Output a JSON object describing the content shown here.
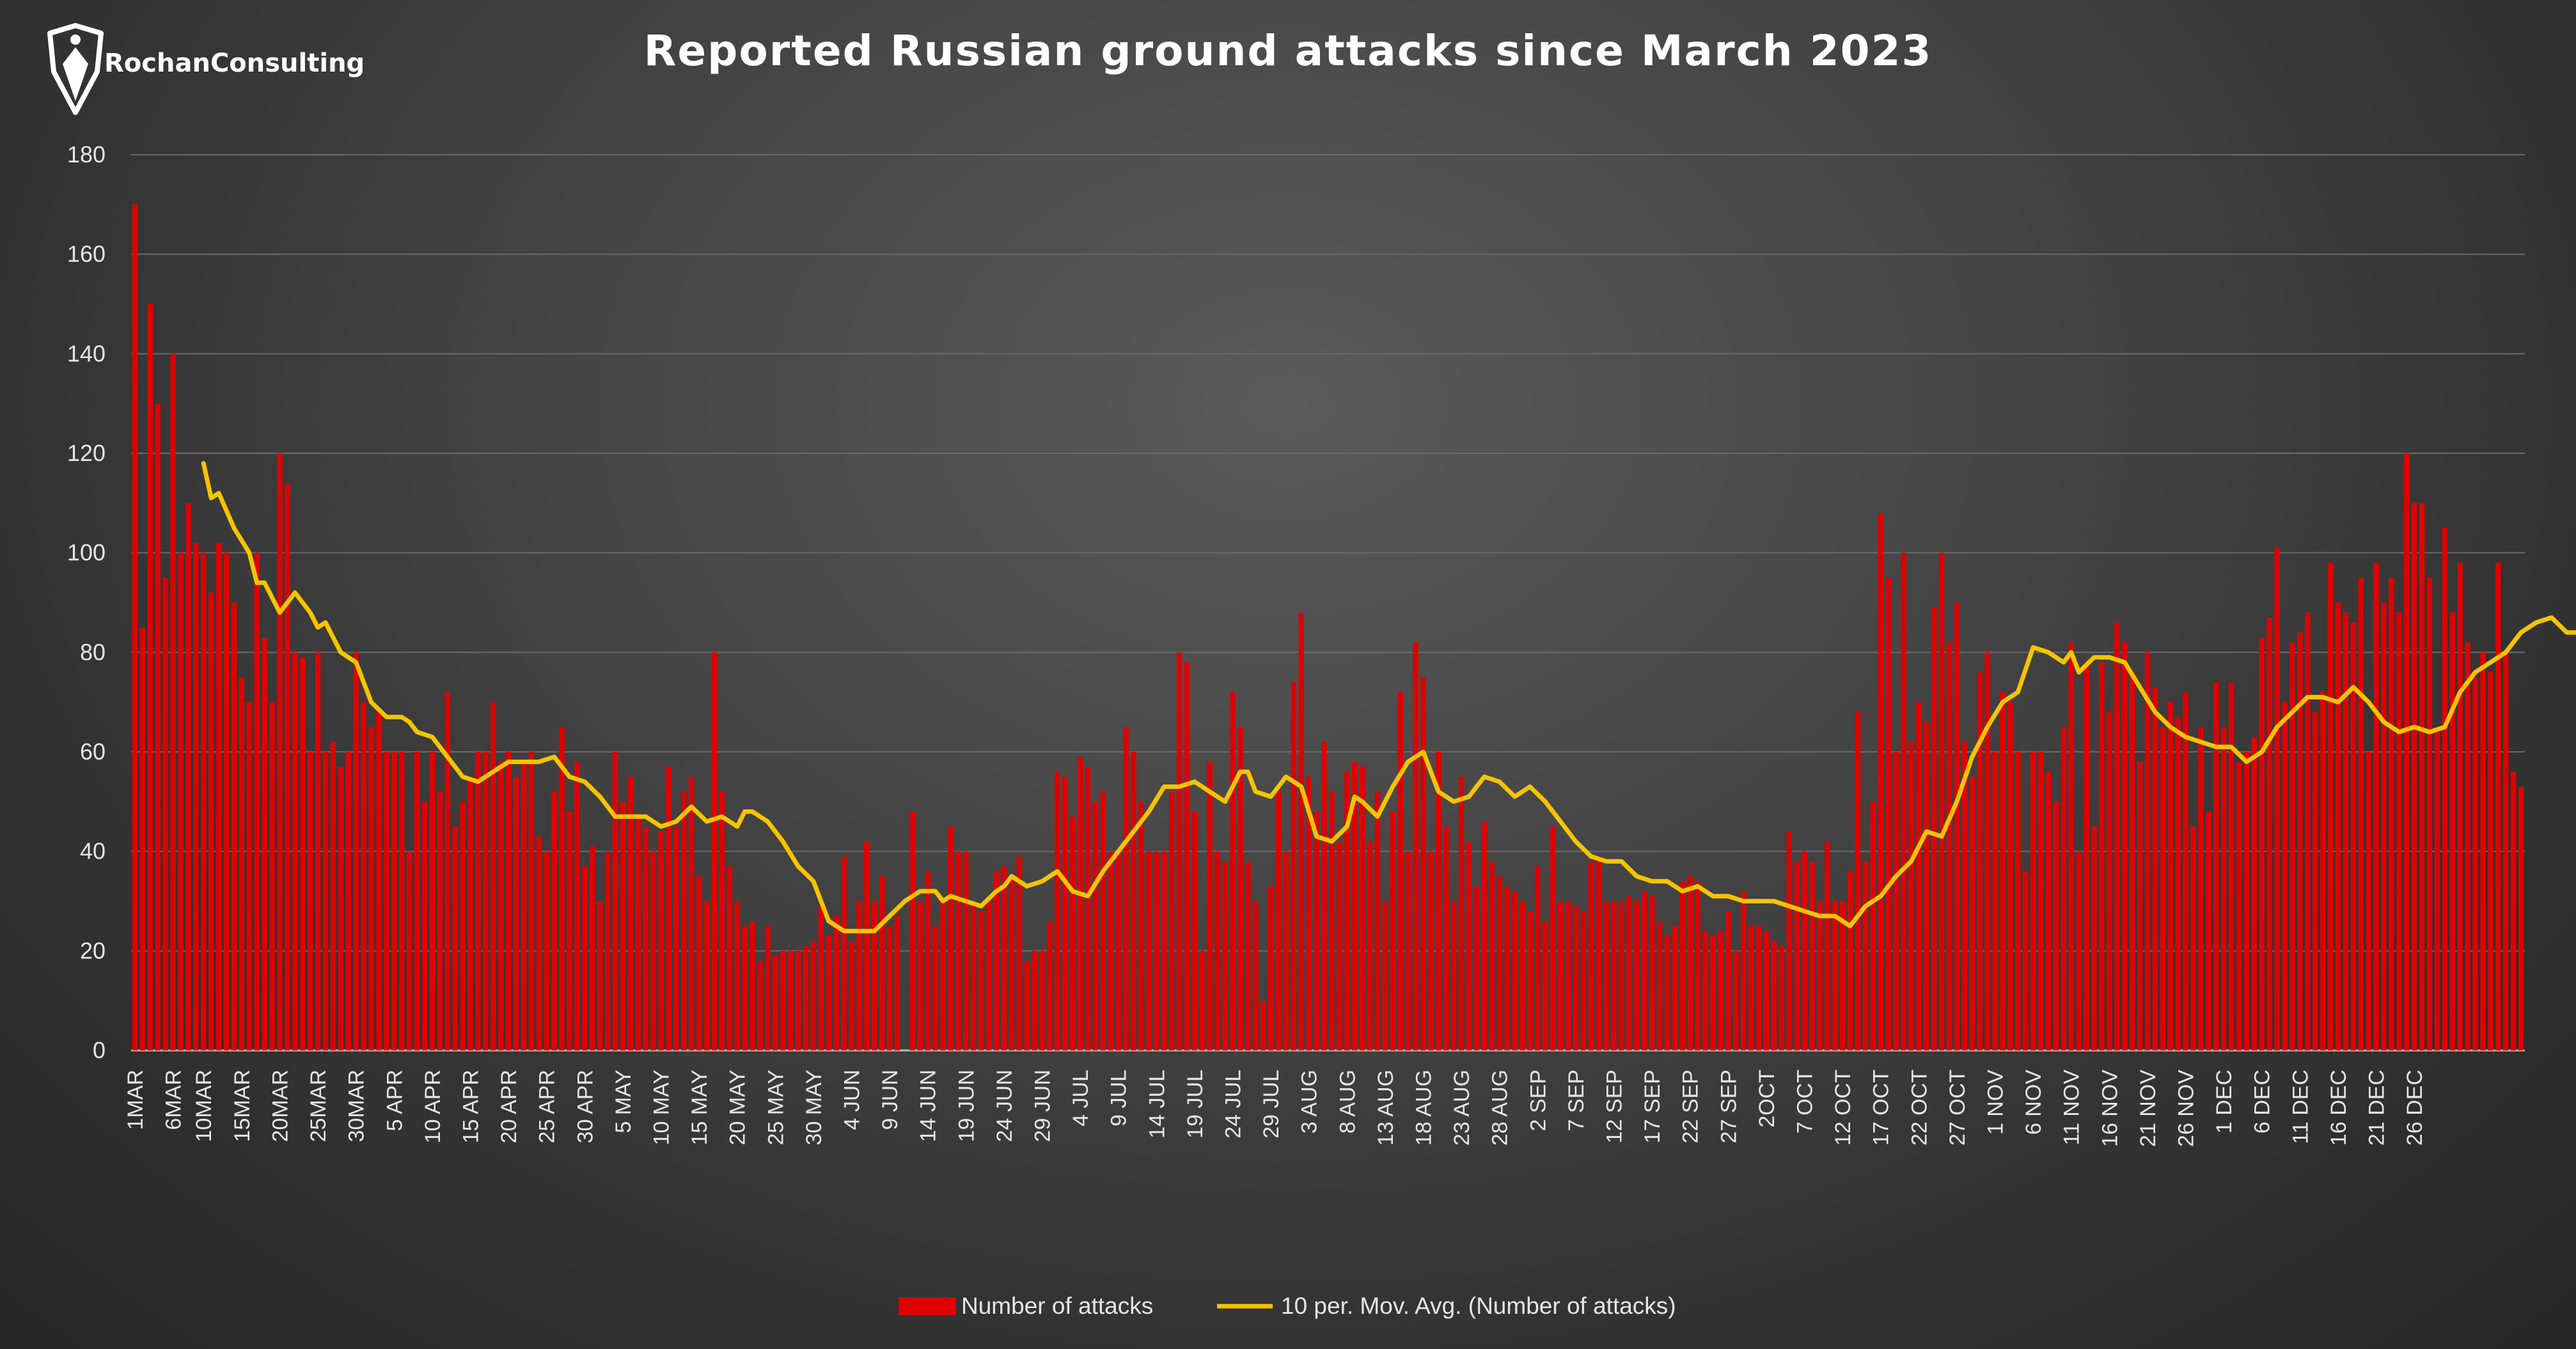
{
  "brand": {
    "name": "RochanConsulting",
    "logo_icon": "shield-pen-logo-icon"
  },
  "chart_data": {
    "type": "bar",
    "title": "Reported Russian ground attacks since March 2023",
    "ylim": [
      0,
      180
    ],
    "yticks": [
      0,
      20,
      40,
      60,
      80,
      100,
      120,
      140,
      160,
      180
    ],
    "grid": "horizontal",
    "legend_position": "bottom-center",
    "x_tick_labels": [
      "1MAR",
      "6MAR",
      "10MAR",
      "15MAR",
      "20MAR",
      "25MAR",
      "30MAR",
      "5 APR",
      "10 APR",
      "15 APR",
      "20 APR",
      "25 APR",
      "30 APR",
      "5 MAY",
      "10 MAY",
      "15 MAY",
      "20 MAY",
      "25 MAY",
      "30 MAY",
      "4 JUN",
      "9 JUN",
      "14 JUN",
      "19 JUN",
      "24 JUN",
      "29 JUN",
      "4 JUL",
      "9 JUL",
      "14 JUL",
      "19 JUL",
      "24 JUL",
      "29 JUL",
      "3 AUG",
      "8 AUG",
      "13 AUG",
      "18 AUG",
      "23 AUG",
      "28 AUG",
      "2 SEP",
      "7 SEP",
      "12 SEP",
      "17 SEP",
      "22 SEP",
      "27 SEP",
      "2OCT",
      "7 OCT",
      "12 OCT",
      "17 OCT",
      "22 OCT",
      "27 OCT",
      "1 NOV",
      "6 NOV",
      "11 NOV",
      "16 NOV",
      "21 NOV",
      "26 NOV",
      "1 DEC",
      "6 DEC",
      "11 DEC",
      "16 DEC",
      "21 DEC",
      "26 DEC"
    ],
    "series": [
      {
        "name": "Number of attacks",
        "kind": "bar",
        "color": "#e00000",
        "values": [
          170,
          85,
          150,
          130,
          95,
          140,
          100,
          110,
          102,
          100,
          92,
          102,
          100,
          90,
          75,
          70,
          100,
          83,
          70,
          120,
          114,
          80,
          79,
          60,
          80,
          60,
          62,
          57,
          60,
          80,
          70,
          65,
          68,
          60,
          60,
          60,
          40,
          60,
          50,
          60,
          52,
          72,
          45,
          50,
          55,
          60,
          60,
          70,
          58,
          60,
          55,
          58,
          60,
          43,
          40,
          52,
          65,
          48,
          58,
          37,
          41,
          30,
          40,
          60,
          50,
          55,
          47,
          45,
          40,
          44,
          57,
          45,
          52,
          55,
          35,
          30,
          80,
          52,
          37,
          30,
          25,
          26,
          18,
          25,
          19,
          20,
          20,
          20,
          21,
          22,
          29,
          23,
          27,
          39,
          22,
          30,
          42,
          30,
          35,
          25,
          27,
          0,
          48,
          30,
          36,
          25,
          30,
          45,
          40,
          40,
          30,
          28,
          30,
          36,
          37,
          35,
          39,
          18,
          20,
          20,
          26,
          56,
          55,
          47,
          59,
          57,
          50,
          52,
          40,
          40,
          65,
          60,
          50,
          40,
          40,
          40,
          52,
          80,
          78,
          48,
          20,
          58,
          40,
          38,
          72,
          65,
          38,
          30,
          10,
          33,
          52,
          40,
          74,
          88,
          55,
          48,
          62,
          52,
          42,
          56,
          58,
          57,
          42,
          52,
          30,
          48,
          72,
          40,
          82,
          75,
          40,
          60,
          45,
          30,
          55,
          42,
          33,
          46,
          38,
          35,
          33,
          32,
          30,
          28,
          37,
          26,
          45,
          30,
          30,
          29,
          28,
          38,
          39,
          30,
          30,
          30,
          31,
          30,
          32,
          31,
          26,
          23,
          25,
          34,
          35,
          34,
          24,
          23,
          24,
          28,
          20,
          32,
          25,
          25,
          24,
          22,
          21,
          44,
          38,
          40,
          38,
          30,
          42,
          30,
          30,
          36,
          68,
          38,
          50,
          108,
          95,
          60,
          100,
          62,
          70,
          66,
          89,
          100,
          82,
          90,
          62,
          55,
          76,
          80,
          60,
          72,
          70,
          60,
          36,
          60,
          60,
          56,
          50,
          65,
          82,
          40,
          78,
          45,
          78,
          68,
          86,
          82,
          76,
          58,
          80,
          73,
          65,
          70,
          67,
          72,
          45,
          65,
          48,
          74,
          65,
          74,
          58,
          60,
          63,
          83,
          87,
          101,
          70,
          82,
          84,
          88,
          68,
          72,
          98,
          90,
          88,
          86,
          95,
          60,
          98,
          90,
          95,
          88,
          120,
          110,
          110,
          95,
          64,
          105,
          88,
          98,
          82,
          75,
          80,
          76,
          98,
          80,
          56,
          53
        ],
        "show_every_label": false
      },
      {
        "name": "10 per. Mov. Avg. (Number of attacks)",
        "kind": "line",
        "color": "#f5c400",
        "anchors": [
          [
            9,
            118
          ],
          [
            10,
            111
          ],
          [
            11,
            112
          ],
          [
            13,
            105
          ],
          [
            15,
            100
          ],
          [
            16,
            94
          ],
          [
            17,
            94
          ],
          [
            18,
            91
          ],
          [
            19,
            88
          ],
          [
            20,
            90
          ],
          [
            21,
            92
          ],
          [
            23,
            88
          ],
          [
            24,
            85
          ],
          [
            25,
            86
          ],
          [
            27,
            80
          ],
          [
            29,
            78
          ],
          [
            31,
            70
          ],
          [
            33,
            67
          ],
          [
            35,
            67
          ],
          [
            36,
            66
          ],
          [
            37,
            64
          ],
          [
            39,
            63
          ],
          [
            41,
            59
          ],
          [
            43,
            55
          ],
          [
            45,
            54
          ],
          [
            47,
            56
          ],
          [
            49,
            58
          ],
          [
            51,
            58
          ],
          [
            53,
            58
          ],
          [
            55,
            59
          ],
          [
            57,
            55
          ],
          [
            59,
            54
          ],
          [
            61,
            51
          ],
          [
            63,
            47
          ],
          [
            65,
            47
          ],
          [
            67,
            47
          ],
          [
            69,
            45
          ],
          [
            71,
            46
          ],
          [
            73,
            49
          ],
          [
            75,
            46
          ],
          [
            77,
            47
          ],
          [
            79,
            45
          ],
          [
            80,
            48
          ],
          [
            81,
            48
          ],
          [
            83,
            46
          ],
          [
            85,
            42
          ],
          [
            87,
            37
          ],
          [
            89,
            34
          ],
          [
            90,
            30
          ],
          [
            91,
            26
          ],
          [
            93,
            24
          ],
          [
            95,
            24
          ],
          [
            97,
            24
          ],
          [
            99,
            27
          ],
          [
            101,
            30
          ],
          [
            103,
            32
          ],
          [
            105,
            32
          ],
          [
            106,
            30
          ],
          [
            107,
            31
          ],
          [
            109,
            30
          ],
          [
            111,
            29
          ],
          [
            113,
            32
          ],
          [
            114,
            33
          ],
          [
            115,
            35
          ],
          [
            117,
            33
          ],
          [
            119,
            34
          ],
          [
            121,
            36
          ],
          [
            123,
            32
          ],
          [
            125,
            31
          ],
          [
            127,
            36
          ],
          [
            129,
            40
          ],
          [
            131,
            44
          ],
          [
            133,
            48
          ],
          [
            135,
            53
          ],
          [
            137,
            53
          ],
          [
            139,
            54
          ],
          [
            141,
            52
          ],
          [
            143,
            50
          ],
          [
            145,
            56
          ],
          [
            146,
            56
          ],
          [
            147,
            52
          ],
          [
            149,
            51
          ],
          [
            151,
            55
          ],
          [
            152,
            54
          ],
          [
            153,
            53
          ],
          [
            155,
            43
          ],
          [
            157,
            42
          ],
          [
            159,
            45
          ],
          [
            160,
            51
          ],
          [
            161,
            50
          ],
          [
            163,
            47
          ],
          [
            165,
            53
          ],
          [
            167,
            58
          ],
          [
            169,
            60
          ],
          [
            171,
            52
          ],
          [
            173,
            50
          ],
          [
            175,
            51
          ],
          [
            177,
            55
          ],
          [
            179,
            54
          ],
          [
            181,
            51
          ],
          [
            183,
            53
          ],
          [
            185,
            50
          ],
          [
            187,
            46
          ],
          [
            189,
            42
          ],
          [
            191,
            39
          ],
          [
            193,
            38
          ],
          [
            195,
            38
          ],
          [
            197,
            35
          ],
          [
            199,
            34
          ],
          [
            201,
            34
          ],
          [
            203,
            32
          ],
          [
            205,
            33
          ],
          [
            207,
            31
          ],
          [
            209,
            31
          ],
          [
            211,
            30
          ],
          [
            213,
            30
          ],
          [
            215,
            30
          ],
          [
            217,
            29
          ],
          [
            219,
            28
          ],
          [
            221,
            27
          ],
          [
            223,
            27
          ],
          [
            225,
            25
          ],
          [
            227,
            29
          ],
          [
            229,
            31
          ],
          [
            231,
            35
          ],
          [
            233,
            38
          ],
          [
            235,
            44
          ],
          [
            237,
            43
          ],
          [
            239,
            50
          ],
          [
            241,
            59
          ],
          [
            243,
            65
          ],
          [
            245,
            70
          ],
          [
            247,
            72
          ],
          [
            249,
            81
          ],
          [
            251,
            80
          ],
          [
            253,
            78
          ],
          [
            254,
            80
          ],
          [
            255,
            76
          ],
          [
            257,
            79
          ],
          [
            259,
            79
          ],
          [
            261,
            78
          ],
          [
            263,
            73
          ],
          [
            265,
            68
          ],
          [
            267,
            65
          ],
          [
            269,
            63
          ],
          [
            271,
            62
          ],
          [
            273,
            61
          ],
          [
            275,
            61
          ],
          [
            277,
            58
          ],
          [
            279,
            60
          ],
          [
            281,
            65
          ],
          [
            283,
            68
          ],
          [
            285,
            71
          ],
          [
            287,
            71
          ],
          [
            289,
            70
          ],
          [
            291,
            73
          ],
          [
            293,
            70
          ],
          [
            295,
            66
          ],
          [
            297,
            64
          ],
          [
            299,
            65
          ],
          [
            301,
            64
          ],
          [
            303,
            65
          ],
          [
            305,
            72
          ],
          [
            307,
            76
          ],
          [
            309,
            78
          ],
          [
            311,
            80
          ],
          [
            313,
            84
          ],
          [
            315,
            86
          ],
          [
            317,
            87
          ],
          [
            319,
            84
          ],
          [
            321,
            84
          ],
          [
            323,
            86
          ],
          [
            325,
            94
          ],
          [
            327,
            95
          ],
          [
            329,
            93
          ],
          [
            331,
            96
          ],
          [
            333,
            98
          ],
          [
            335,
            97
          ],
          [
            337,
            93
          ],
          [
            339,
            88
          ],
          [
            341,
            86
          ],
          [
            343,
            85
          ],
          [
            345,
            80
          ]
        ]
      }
    ]
  }
}
